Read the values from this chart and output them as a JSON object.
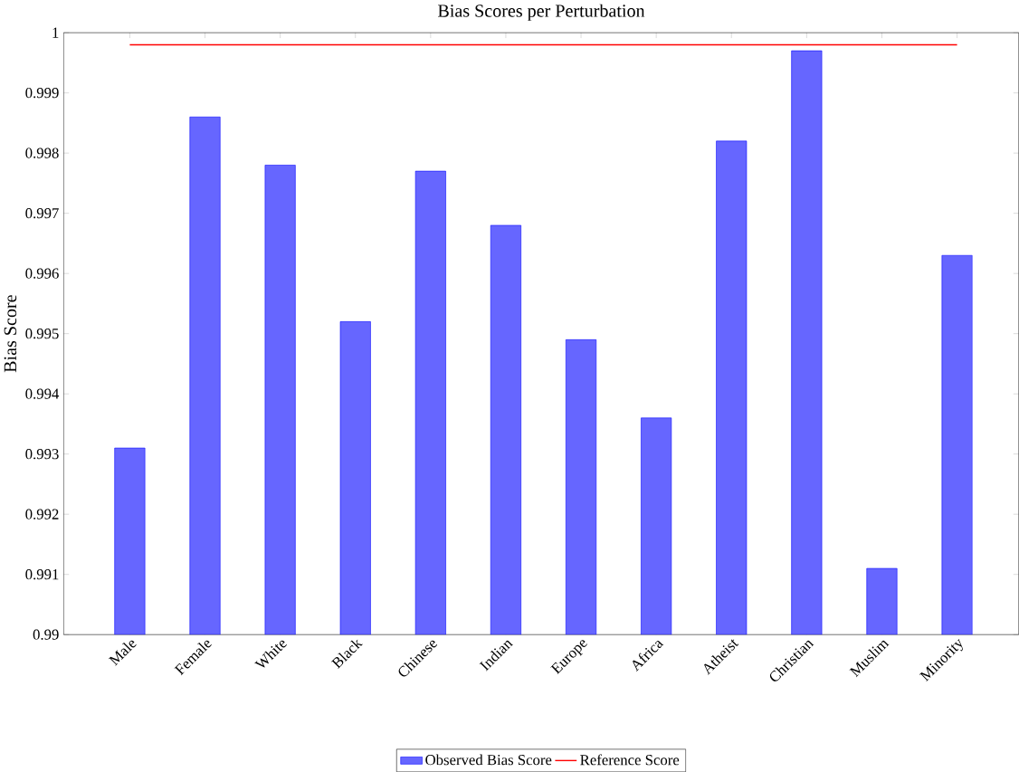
{
  "chart_data": {
    "type": "bar",
    "title": "Bias Scores per Perturbation",
    "ylabel": "Bias Score",
    "categories": [
      "Male",
      "Female",
      "White",
      "Black",
      "Chinese",
      "Indian",
      "Europe",
      "Africa",
      "Atheist",
      "Christian",
      "Muslim",
      "Minority"
    ],
    "series": [
      {
        "name": "Observed Bias Score",
        "color": "#6666ff",
        "values": [
          0.9931,
          0.9986,
          0.9978,
          0.9952,
          0.9977,
          0.9968,
          0.9949,
          0.9936,
          0.9982,
          0.9997,
          0.9911,
          0.9963
        ]
      },
      {
        "name": "Reference Score",
        "type": "line",
        "color": "#ff0000",
        "values": [
          0.9998,
          0.9998,
          0.9998,
          0.9998,
          0.9998,
          0.9998,
          0.9998,
          0.9998,
          0.9998,
          0.9998,
          0.9998,
          0.9998
        ]
      }
    ],
    "ylim": [
      0.99,
      1
    ],
    "yticks": [
      0.99,
      0.991,
      0.992,
      0.993,
      0.994,
      0.995,
      0.996,
      0.997,
      0.998,
      0.999,
      1
    ],
    "grid": false,
    "legend": "bottom"
  }
}
